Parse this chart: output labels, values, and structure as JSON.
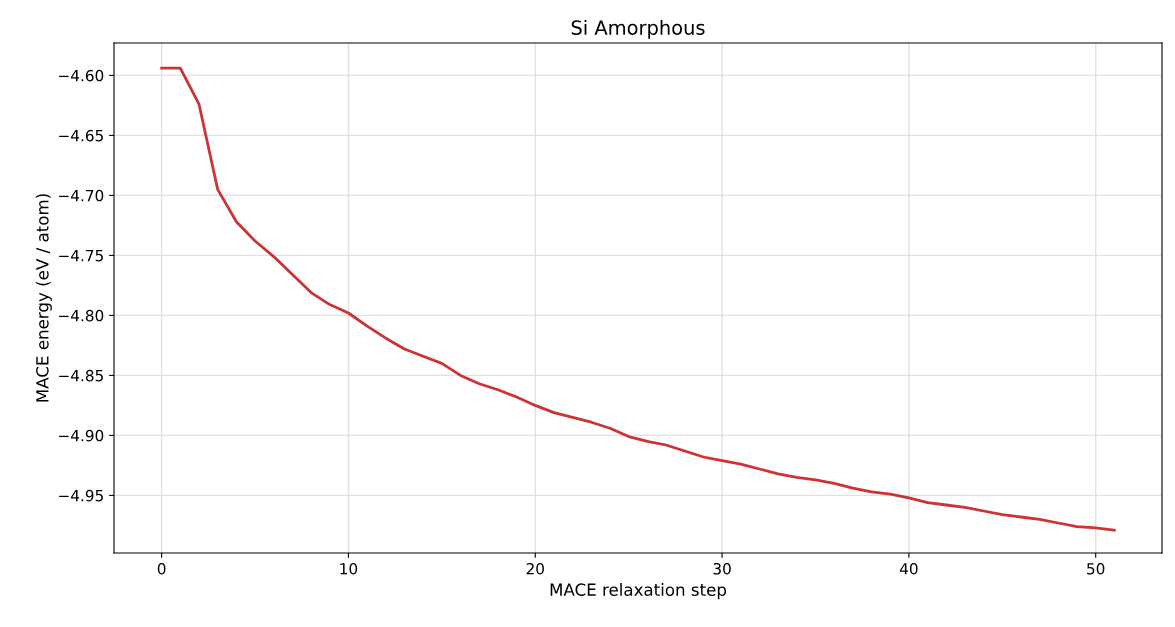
{
  "chart_data": {
    "type": "line",
    "title": "Si Amorphous",
    "xlabel": "MACE relaxation step",
    "ylabel": "MACE energy (eV / atom)",
    "x": [
      0,
      1,
      2,
      3,
      4,
      5,
      6,
      7,
      8,
      9,
      10,
      11,
      12,
      13,
      14,
      15,
      16,
      17,
      18,
      19,
      20,
      21,
      22,
      23,
      24,
      25,
      26,
      27,
      28,
      29,
      30,
      31,
      32,
      33,
      34,
      35,
      36,
      37,
      38,
      39,
      40,
      41,
      42,
      43,
      44,
      45,
      46,
      47,
      48,
      49,
      50,
      51
    ],
    "series": [
      {
        "color": "#cc3333",
        "values": [
          -4.594,
          -4.594,
          -4.624,
          -4.695,
          -4.722,
          -4.738,
          -4.751,
          -4.766,
          -4.781,
          -4.791,
          -4.798,
          -4.809,
          -4.819,
          -4.828,
          -4.834,
          -4.84,
          -4.85,
          -4.857,
          -4.862,
          -4.868,
          -4.875,
          -4.881,
          -4.885,
          -4.889,
          -4.894,
          -4.901,
          -4.905,
          -4.908,
          -4.913,
          -4.918,
          -4.921,
          -4.924,
          -4.928,
          -4.932,
          -4.935,
          -4.937,
          -4.94,
          -4.944,
          -4.947,
          -4.949,
          -4.952,
          -4.956,
          -4.958,
          -4.96,
          -4.963,
          -4.966,
          -4.968,
          -4.97,
          -4.973,
          -4.976,
          -4.977,
          -4.979
        ]
      }
    ],
    "xlim": [
      -2.55,
      53.55
    ],
    "ylim": [
      -4.998,
      -4.573
    ],
    "xticks": [
      0,
      10,
      20,
      30,
      40,
      50
    ],
    "yticks": [
      {
        "value": -4.95,
        "label": "−4.95"
      },
      {
        "value": -4.9,
        "label": "−4.90"
      },
      {
        "value": -4.85,
        "label": "−4.85"
      },
      {
        "value": -4.8,
        "label": "−4.80"
      },
      {
        "value": -4.75,
        "label": "−4.75"
      },
      {
        "value": -4.7,
        "label": "−4.70"
      },
      {
        "value": -4.65,
        "label": "−4.65"
      },
      {
        "value": -4.6,
        "label": "−4.60"
      }
    ],
    "grid": true,
    "marker": "none",
    "line_style": "solid"
  }
}
